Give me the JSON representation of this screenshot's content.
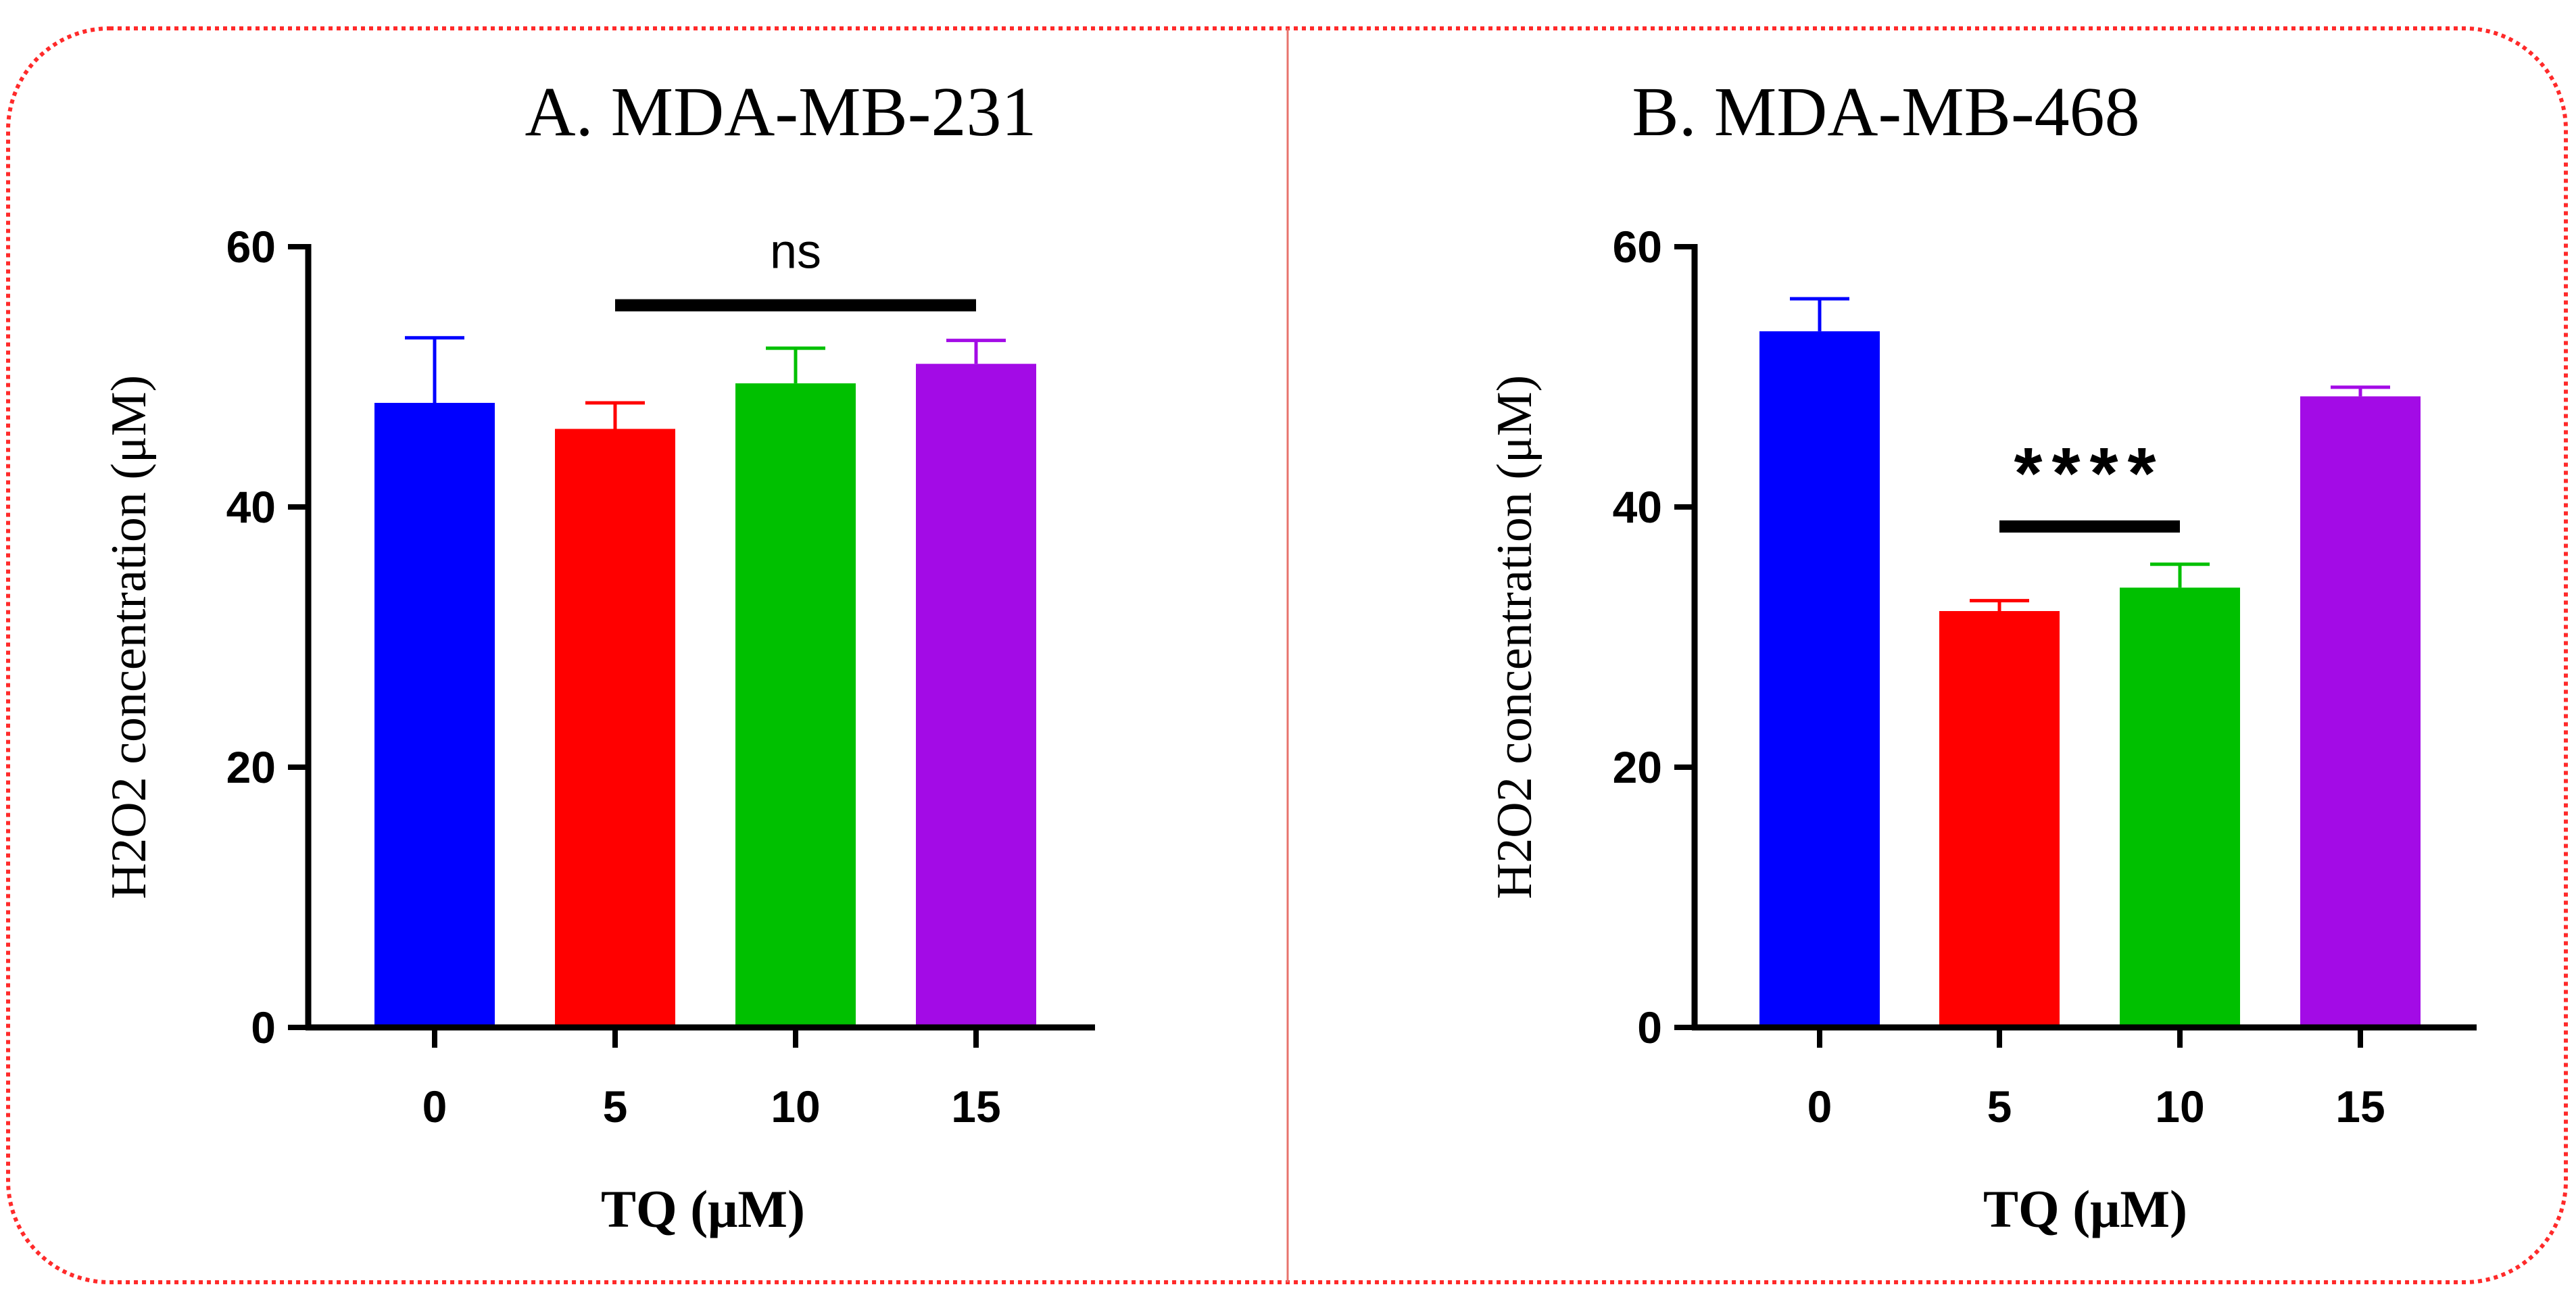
{
  "chart_data": [
    {
      "panel": "A",
      "type": "bar",
      "title": "A. MDA-MB-231",
      "xlabel": "TQ (μM)",
      "ylabel": "H2O2 concentration (μM)",
      "categories": [
        "0",
        "5",
        "10",
        "15"
      ],
      "values": [
        48,
        46,
        49.5,
        51
      ],
      "errors": [
        5,
        2,
        2.7,
        1.8
      ],
      "colors": [
        "#0000FF",
        "#FF0000",
        "#00C000",
        "#A30BE6"
      ],
      "ylim": [
        0,
        60
      ],
      "yticks": [
        "0",
        "20",
        "40",
        "60"
      ],
      "significance": {
        "label": "ns",
        "from": "5",
        "to": "15",
        "value": 55.5
      }
    },
    {
      "panel": "B",
      "type": "bar",
      "title": "B. MDA-MB-468",
      "xlabel": "TQ (μM)",
      "ylabel": "H2O2 concentration (μM)",
      "categories": [
        "0",
        "5",
        "10",
        "15"
      ],
      "values": [
        53.5,
        32,
        33.8,
        48.5
      ],
      "errors": [
        2.5,
        0.8,
        1.8,
        0.7
      ],
      "colors": [
        "#0000FF",
        "#FF0000",
        "#00C000",
        "#A30BE6"
      ],
      "ylim": [
        0,
        60
      ],
      "yticks": [
        "0",
        "20",
        "40",
        "60"
      ],
      "significance": {
        "label": "****",
        "from": "5",
        "to": "10",
        "value": 38.5
      }
    }
  ],
  "frame": {
    "border_color": "#FF2A2A",
    "divider_color": "#E8736C"
  }
}
